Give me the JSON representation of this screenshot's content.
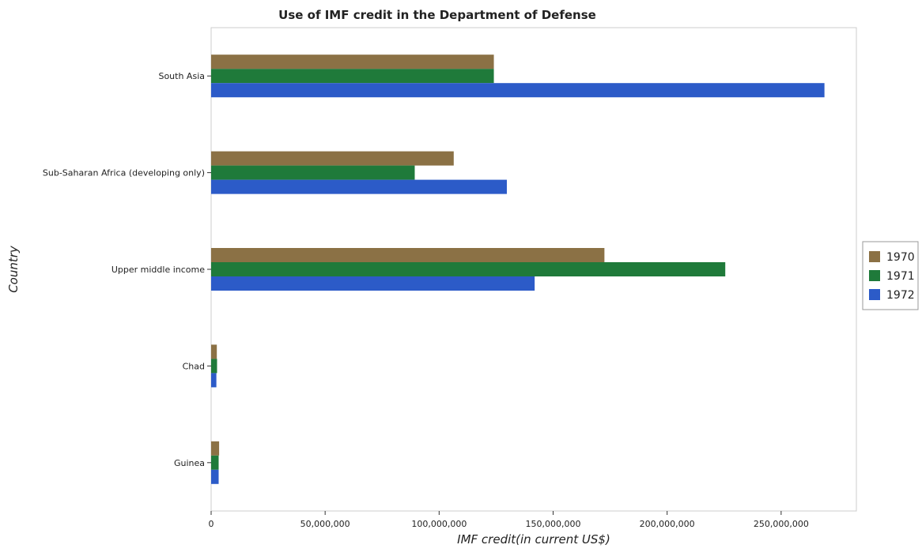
{
  "chart_data": {
    "type": "bar",
    "orientation": "horizontal",
    "title": "Use of IMF credit in the Department of Defense",
    "xlabel": "IMF credit(in current US$)",
    "ylabel": "Country",
    "categories": [
      "South Asia",
      "Sub-Saharan Africa (developing only)",
      "Upper middle income",
      "Chad",
      "Guinea"
    ],
    "series": [
      {
        "name": "1970",
        "color": "#8B7145",
        "values": [
          124000000,
          106400000,
          172500000,
          2500000,
          3500000
        ]
      },
      {
        "name": "1971",
        "color": "#1F7A3A",
        "values": [
          124000000,
          89300000,
          225500000,
          2600000,
          3300000
        ]
      },
      {
        "name": "1972",
        "color": "#2C5BC8",
        "values": [
          269000000,
          129700000,
          141900000,
          2300000,
          3300000
        ]
      }
    ],
    "xlim": [
      0,
      283000000
    ],
    "xticks": [
      {
        "value": 0,
        "label": "0"
      },
      {
        "value": 50000000,
        "label": "50,000,000"
      },
      {
        "value": 100000000,
        "label": "100,000,000"
      },
      {
        "value": 150000000,
        "label": "150,000,000"
      },
      {
        "value": 200000000,
        "label": "200,000,000"
      },
      {
        "value": 250000000,
        "label": "250,000,000"
      }
    ],
    "grid": false,
    "legend_position": "right"
  }
}
